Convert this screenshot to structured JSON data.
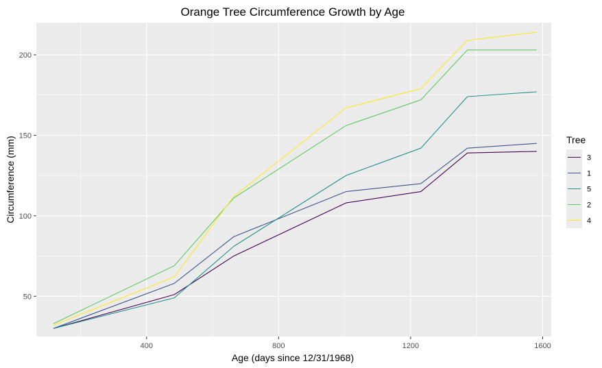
{
  "chart_data": {
    "type": "line",
    "title": "Orange Tree Circumference Growth by Age",
    "xlabel": "Age (days since 12/31/1968)",
    "ylabel": "Circumference (mm)",
    "xlim": [
      66,
      1626
    ],
    "ylim": [
      25,
      220
    ],
    "x_ticks": [
      400,
      800,
      1200,
      1600
    ],
    "y_ticks": [
      50,
      100,
      150,
      200
    ],
    "x_tick_labels": [
      "400",
      "800",
      "1200",
      "1600"
    ],
    "y_tick_labels": [
      "50",
      "100",
      "150",
      "200"
    ],
    "grid": true,
    "legend_title": "Tree",
    "legend_position": "right",
    "x": [
      118,
      484,
      664,
      1004,
      1231,
      1372,
      1582
    ],
    "series": [
      {
        "name": "3",
        "color": "#440154",
        "values": [
          30,
          51,
          75,
          108,
          115,
          139,
          140
        ]
      },
      {
        "name": "1",
        "color": "#3b528b",
        "values": [
          30,
          58,
          87,
          115,
          120,
          142,
          145
        ]
      },
      {
        "name": "5",
        "color": "#21908c",
        "values": [
          30,
          49,
          81,
          125,
          142,
          174,
          177
        ]
      },
      {
        "name": "2",
        "color": "#5ec962",
        "values": [
          33,
          69,
          111,
          156,
          172,
          203,
          203
        ]
      },
      {
        "name": "4",
        "color": "#fde725",
        "values": [
          32,
          62,
          112,
          167,
          179,
          209,
          214
        ]
      }
    ]
  }
}
